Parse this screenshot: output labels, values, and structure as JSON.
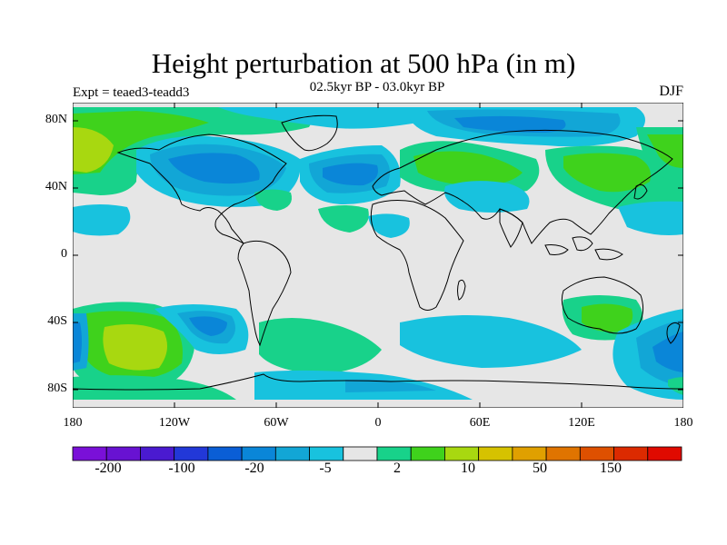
{
  "title": "Height perturbation at 500 hPa (in m)",
  "subtitle": "02.5kyr BP - 03.0kyr BP",
  "left_label": "Expt = teaed3-teadd3",
  "right_label": "DJF",
  "lat_ticks": [
    "80N",
    "40N",
    "0",
    "40S",
    "80S"
  ],
  "lon_ticks": [
    "180",
    "120W",
    "60W",
    "0",
    "60E",
    "120E",
    "180"
  ],
  "colorbar": {
    "colors": [
      "#7a10d8",
      "#6812d2",
      "#4a1ad0",
      "#2238d8",
      "#0a5ed6",
      "#0a86d8",
      "#12a6d6",
      "#18c2de",
      "#e6e6e6",
      "#18d28a",
      "#3fd21c",
      "#a8d810",
      "#d6c200",
      "#e0a000",
      "#e07400",
      "#de5000",
      "#dc2a00",
      "#e00a00"
    ],
    "labels": [
      "-200",
      "-100",
      "-20",
      "-5",
      "2",
      "10",
      "50",
      "150"
    ]
  },
  "map_colors": {
    "background": "#e6e6e6",
    "coast": "#000000"
  }
}
